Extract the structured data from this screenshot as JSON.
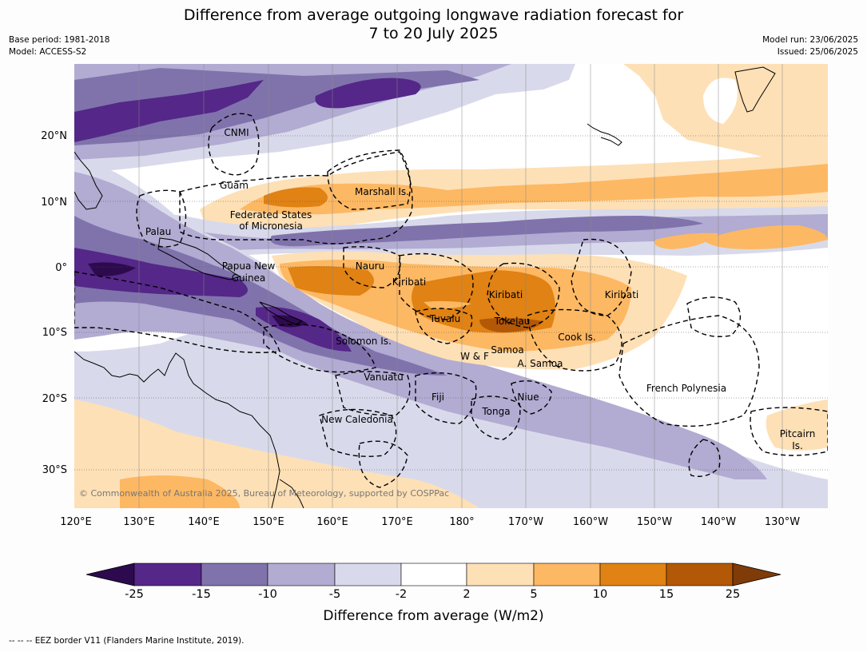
{
  "header": {
    "title_line1": "Difference from average outgoing longwave radiation forecast for",
    "title_line2": "7 to 20 July 2025",
    "base_period": "Base period: 1981-2018",
    "model": "Model: ACCESS-S2",
    "model_run": "Model run: 23/06/2025",
    "issued": "Issued: 25/06/2025"
  },
  "map": {
    "lon_ticks": [
      "120°E",
      "130°E",
      "140°E",
      "150°E",
      "160°E",
      "170°E",
      "180°",
      "170°W",
      "160°W",
      "150°W",
      "140°W",
      "130°W"
    ],
    "lat_ticks": [
      "20°N",
      "10°N",
      "0°",
      "10°S",
      "20°S",
      "30°S"
    ],
    "regions": [
      "CNMI",
      "Guam",
      "Marshall Is.",
      "Federated States",
      "of Micronesia",
      "Palau",
      "Papua New",
      "Guinea",
      "Nauru",
      "Kiribati",
      "Kiribati",
      "Kiribati",
      "Tuvalu",
      "Tokelau",
      "Cook Is.",
      "Solomon Is.",
      "W & F",
      "Samoa",
      "A. Samoa",
      "Vanuatu",
      "Fiji",
      "Niue",
      "Tonga",
      "French Polynesia",
      "New Caledonia",
      "Pitcairn",
      "Is."
    ],
    "copyright": "© Commonwealth of Australia 2025, Bureau of Meteorology, supported by COSPPac"
  },
  "colorbar": {
    "title": "Difference from average (W/m2)",
    "ticks": [
      "-25",
      "-15",
      "-10",
      "-5",
      "-2",
      "2",
      "5",
      "10",
      "15",
      "25"
    ],
    "colors": [
      "#2d0a4e",
      "#542788",
      "#8073ac",
      "#b2abd2",
      "#d8daeb",
      "#ffffff",
      "#fee0b6",
      "#fdb863",
      "#e08214",
      "#b35806",
      "#7f3b08"
    ]
  },
  "footer": {
    "eez_note": "--  --  -- EEZ border V11 (Flanders Marine Institute, 2019)."
  }
}
